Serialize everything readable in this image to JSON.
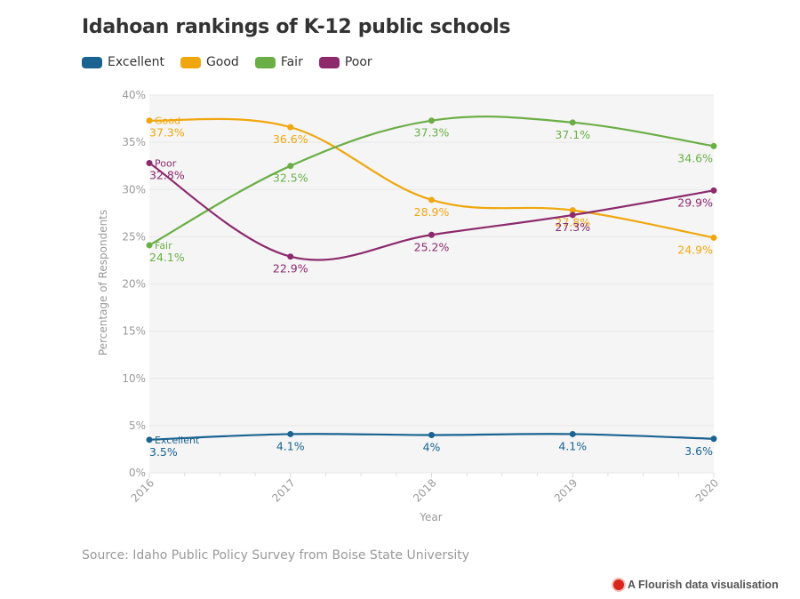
{
  "chart_data": {
    "type": "line",
    "title": "Idahoan rankings of K-12 public schools",
    "xlabel": "Year",
    "ylabel": "Percentage of Respondents",
    "x": [
      "2016",
      "2017",
      "2018",
      "2019",
      "2020"
    ],
    "ylim": [
      0,
      40
    ],
    "yticks": [
      "0%",
      "5%",
      "10%",
      "15%",
      "20%",
      "25%",
      "30%",
      "35%",
      "40%"
    ],
    "ytick_values": [
      0,
      5,
      10,
      15,
      20,
      25,
      30,
      35,
      40
    ],
    "grid": true,
    "legend_position": "top-left",
    "series": [
      {
        "name": "Excellent",
        "color": "#1a6391",
        "values": [
          3.5,
          4.1,
          4.0,
          4.1,
          3.6
        ],
        "labels": [
          "3.5%",
          "4.1%",
          "4%",
          "4.1%",
          "3.6%"
        ]
      },
      {
        "name": "Good",
        "color": "#f0a70f",
        "values": [
          37.3,
          36.6,
          28.9,
          27.8,
          24.9
        ],
        "labels": [
          "37.3%",
          "36.6%",
          "28.9%",
          "27.8%",
          "24.9%"
        ]
      },
      {
        "name": "Fair",
        "color": "#6bae46",
        "values": [
          24.1,
          32.5,
          37.3,
          37.1,
          34.6
        ],
        "labels": [
          "24.1%",
          "32.5%",
          "37.3%",
          "37.1%",
          "34.6%"
        ]
      },
      {
        "name": "Poor",
        "color": "#8c2a6c",
        "values": [
          32.8,
          22.9,
          25.2,
          27.3,
          29.9
        ],
        "labels": [
          "32.8%",
          "22.9%",
          "25.2%",
          "27.3%",
          "29.9%"
        ]
      }
    ]
  },
  "footer": {
    "source": "Source: Idaho Public Policy Survey from Boise State University",
    "credit": "A Flourish data visualisation"
  }
}
